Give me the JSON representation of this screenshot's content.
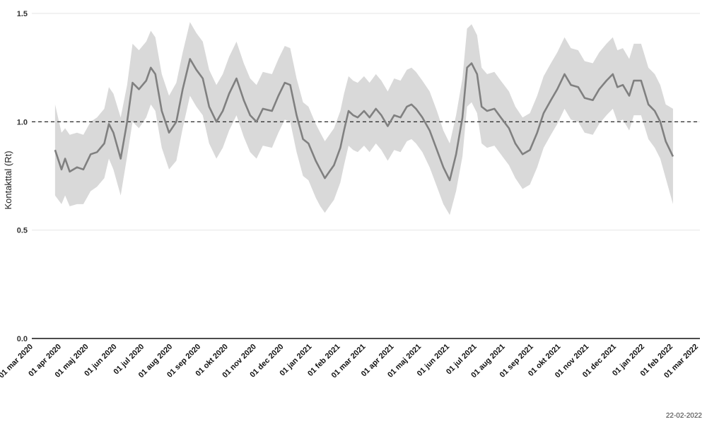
{
  "chart_data": {
    "type": "line",
    "ylabel": "Kontakttal (Rt)",
    "ylim": [
      0,
      1.5
    ],
    "yticks": [
      0.0,
      0.5,
      1.0,
      1.5
    ],
    "ytick_labels": [
      "0.0",
      "0.5",
      "1.0",
      "1.5"
    ],
    "reference_line": 1.0,
    "grid": true,
    "x_start": "2020-03-01",
    "x_end": "2022-03-01",
    "xtick_dates": [
      "2020-03-01",
      "2020-04-01",
      "2020-05-01",
      "2020-06-01",
      "2020-07-01",
      "2020-08-01",
      "2020-09-01",
      "2020-10-01",
      "2020-11-01",
      "2020-12-01",
      "2021-01-01",
      "2021-02-01",
      "2021-03-01",
      "2021-04-01",
      "2021-05-01",
      "2021-06-01",
      "2021-07-01",
      "2021-08-01",
      "2021-09-01",
      "2021-10-01",
      "2021-11-01",
      "2021-12-01",
      "2022-01-01",
      "2022-02-01",
      "2022-03-01"
    ],
    "xtick_labels": [
      "01 mar 2020",
      "01 apr 2020",
      "01 maj 2020",
      "01 jun 2020",
      "01 jul 2020",
      "01 aug 2020",
      "01 sep 2020",
      "01 okt 2020",
      "01 nov 2020",
      "01 dec 2020",
      "01 jan 2021",
      "01 feb 2021",
      "01 mar 2021",
      "01 apr 2021",
      "01 maj 2021",
      "01 jun 2021",
      "01 jul 2021",
      "01 aug 2021",
      "01 sep 2021",
      "01 okt 2021",
      "01 nov 2021",
      "01 dec 2021",
      "01 jan 2022",
      "01 feb 2022",
      "01 mar 2022"
    ],
    "series": [
      {
        "points": [
          [
            "2020-03-25",
            0.87,
            0.66,
            1.08
          ],
          [
            "2020-04-01",
            0.78,
            0.62,
            0.95
          ],
          [
            "2020-04-05",
            0.83,
            0.66,
            0.97
          ],
          [
            "2020-04-10",
            0.77,
            0.61,
            0.94
          ],
          [
            "2020-04-18",
            0.79,
            0.62,
            0.95
          ],
          [
            "2020-04-25",
            0.78,
            0.62,
            0.94
          ],
          [
            "2020-05-03",
            0.85,
            0.68,
            1.0
          ],
          [
            "2020-05-10",
            0.86,
            0.7,
            1.02
          ],
          [
            "2020-05-18",
            0.9,
            0.74,
            1.06
          ],
          [
            "2020-05-23",
            0.99,
            0.83,
            1.16
          ],
          [
            "2020-05-28",
            0.95,
            0.78,
            1.13
          ],
          [
            "2020-06-05",
            0.83,
            0.66,
            1.02
          ],
          [
            "2020-06-12",
            1.0,
            0.84,
            1.17
          ],
          [
            "2020-06-18",
            1.18,
            1.0,
            1.36
          ],
          [
            "2020-06-25",
            1.15,
            0.97,
            1.33
          ],
          [
            "2020-07-03",
            1.19,
            1.02,
            1.37
          ],
          [
            "2020-07-08",
            1.25,
            1.08,
            1.42
          ],
          [
            "2020-07-13",
            1.22,
            1.05,
            1.39
          ],
          [
            "2020-07-20",
            1.05,
            0.88,
            1.22
          ],
          [
            "2020-07-28",
            0.95,
            0.78,
            1.12
          ],
          [
            "2020-08-05",
            1.0,
            0.82,
            1.18
          ],
          [
            "2020-08-12",
            1.15,
            0.97,
            1.32
          ],
          [
            "2020-08-20",
            1.29,
            1.12,
            1.46
          ],
          [
            "2020-08-27",
            1.24,
            1.07,
            1.41
          ],
          [
            "2020-09-03",
            1.2,
            1.03,
            1.37
          ],
          [
            "2020-09-10",
            1.07,
            0.9,
            1.24
          ],
          [
            "2020-09-18",
            1.0,
            0.83,
            1.17
          ],
          [
            "2020-09-25",
            1.05,
            0.88,
            1.22
          ],
          [
            "2020-10-02",
            1.13,
            0.96,
            1.3
          ],
          [
            "2020-10-10",
            1.2,
            1.03,
            1.37
          ],
          [
            "2020-10-18",
            1.1,
            0.93,
            1.27
          ],
          [
            "2020-10-25",
            1.03,
            0.86,
            1.2
          ],
          [
            "2020-11-01",
            1.0,
            0.83,
            1.17
          ],
          [
            "2020-11-08",
            1.06,
            0.89,
            1.23
          ],
          [
            "2020-11-18",
            1.05,
            0.88,
            1.22
          ],
          [
            "2020-11-25",
            1.12,
            0.95,
            1.29
          ],
          [
            "2020-12-02",
            1.18,
            1.01,
            1.35
          ],
          [
            "2020-12-08",
            1.17,
            1.0,
            1.34
          ],
          [
            "2020-12-15",
            1.03,
            0.86,
            1.2
          ],
          [
            "2020-12-22",
            0.92,
            0.75,
            1.09
          ],
          [
            "2020-12-28",
            0.9,
            0.73,
            1.07
          ],
          [
            "2021-01-05",
            0.82,
            0.65,
            0.99
          ],
          [
            "2021-01-10",
            0.78,
            0.61,
            0.95
          ],
          [
            "2021-01-15",
            0.74,
            0.58,
            0.91
          ],
          [
            "2021-01-20",
            0.77,
            0.61,
            0.94
          ],
          [
            "2021-01-25",
            0.8,
            0.64,
            0.97
          ],
          [
            "2021-02-01",
            0.88,
            0.72,
            1.05
          ],
          [
            "2021-02-05",
            0.96,
            0.8,
            1.13
          ],
          [
            "2021-02-10",
            1.05,
            0.89,
            1.21
          ],
          [
            "2021-02-15",
            1.03,
            0.87,
            1.19
          ],
          [
            "2021-02-20",
            1.02,
            0.86,
            1.18
          ],
          [
            "2021-02-27",
            1.05,
            0.89,
            1.21
          ],
          [
            "2021-03-05",
            1.02,
            0.86,
            1.18
          ],
          [
            "2021-03-12",
            1.06,
            0.9,
            1.22
          ],
          [
            "2021-03-18",
            1.03,
            0.87,
            1.19
          ],
          [
            "2021-03-25",
            0.98,
            0.82,
            1.14
          ],
          [
            "2021-04-01",
            1.03,
            0.87,
            1.2
          ],
          [
            "2021-04-08",
            1.02,
            0.86,
            1.19
          ],
          [
            "2021-04-15",
            1.07,
            0.91,
            1.24
          ],
          [
            "2021-04-20",
            1.08,
            0.92,
            1.25
          ],
          [
            "2021-04-25",
            1.06,
            0.9,
            1.23
          ],
          [
            "2021-05-02",
            1.02,
            0.86,
            1.19
          ],
          [
            "2021-05-10",
            0.96,
            0.79,
            1.14
          ],
          [
            "2021-05-18",
            0.87,
            0.7,
            1.05
          ],
          [
            "2021-05-25",
            0.79,
            0.62,
            0.96
          ],
          [
            "2021-06-01",
            0.73,
            0.57,
            0.9
          ],
          [
            "2021-06-08",
            0.85,
            0.68,
            1.03
          ],
          [
            "2021-06-15",
            1.02,
            0.84,
            1.2
          ],
          [
            "2021-06-20",
            1.25,
            1.07,
            1.43
          ],
          [
            "2021-06-25",
            1.27,
            1.09,
            1.45
          ],
          [
            "2021-07-01",
            1.22,
            1.04,
            1.4
          ],
          [
            "2021-07-06",
            1.07,
            0.9,
            1.25
          ],
          [
            "2021-07-12",
            1.05,
            0.88,
            1.22
          ],
          [
            "2021-07-20",
            1.06,
            0.89,
            1.23
          ],
          [
            "2021-07-27",
            1.02,
            0.85,
            1.19
          ],
          [
            "2021-08-05",
            0.97,
            0.8,
            1.14
          ],
          [
            "2021-08-12",
            0.9,
            0.74,
            1.07
          ],
          [
            "2021-08-20",
            0.85,
            0.69,
            1.02
          ],
          [
            "2021-08-28",
            0.87,
            0.71,
            1.04
          ],
          [
            "2021-09-05",
            0.95,
            0.79,
            1.12
          ],
          [
            "2021-09-12",
            1.04,
            0.88,
            1.21
          ],
          [
            "2021-09-20",
            1.1,
            0.94,
            1.27
          ],
          [
            "2021-09-27",
            1.15,
            0.99,
            1.32
          ],
          [
            "2021-10-05",
            1.22,
            1.06,
            1.39
          ],
          [
            "2021-10-12",
            1.17,
            1.01,
            1.34
          ],
          [
            "2021-10-20",
            1.16,
            1.0,
            1.33
          ],
          [
            "2021-10-27",
            1.11,
            0.95,
            1.28
          ],
          [
            "2021-11-05",
            1.1,
            0.94,
            1.27
          ],
          [
            "2021-11-12",
            1.15,
            0.99,
            1.32
          ],
          [
            "2021-11-20",
            1.19,
            1.03,
            1.36
          ],
          [
            "2021-11-27",
            1.22,
            1.06,
            1.39
          ],
          [
            "2021-12-02",
            1.16,
            1.0,
            1.33
          ],
          [
            "2021-12-08",
            1.17,
            1.01,
            1.34
          ],
          [
            "2021-12-15",
            1.12,
            0.96,
            1.29
          ],
          [
            "2021-12-20",
            1.19,
            1.03,
            1.36
          ],
          [
            "2021-12-28",
            1.19,
            1.03,
            1.36
          ],
          [
            "2022-01-05",
            1.08,
            0.92,
            1.25
          ],
          [
            "2022-01-12",
            1.05,
            0.88,
            1.22
          ],
          [
            "2022-01-18",
            1.0,
            0.83,
            1.17
          ],
          [
            "2022-01-24",
            0.91,
            0.74,
            1.08
          ],
          [
            "2022-02-01",
            0.84,
            0.62,
            1.06
          ]
        ]
      }
    ]
  },
  "footer": {
    "date_stamp": "22-02-2022"
  }
}
